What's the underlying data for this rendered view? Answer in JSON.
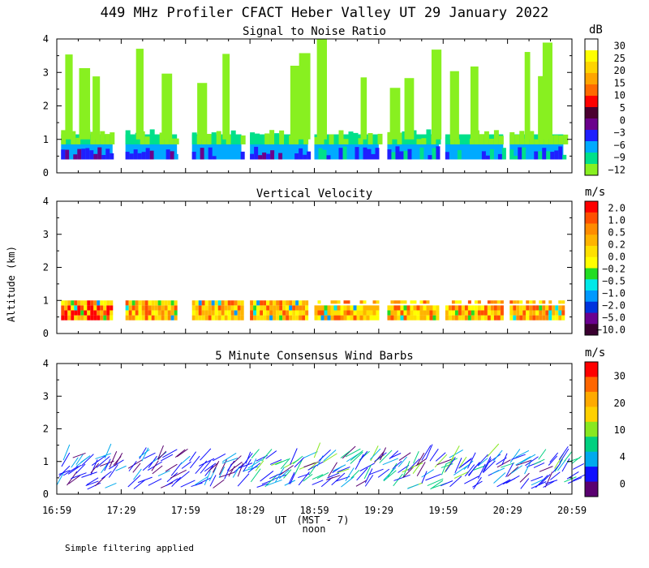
{
  "chart_data": {
    "title": "449 MHz Profiler CFACT Heber Valley UT 29 January 2022",
    "type": "heatmap",
    "shared_ylabel": "Altitude (km)",
    "xlabel": "UT",
    "xlabel_sub": "(MST - 7)",
    "xlabel_sub2": "noon",
    "footnote": "Simple filtering applied",
    "x_tick_labels": [
      "16:59",
      "17:29",
      "17:59",
      "18:29",
      "18:59",
      "19:29",
      "19:59",
      "20:29",
      "20:59"
    ],
    "x_range_minutes": [
      0,
      240
    ],
    "y_tick_labels": [
      "0",
      "1",
      "2",
      "3",
      "4"
    ],
    "ylim_km": [
      0,
      4
    ],
    "panels": [
      {
        "title": "Signal to Noise Ratio",
        "unit": "dB",
        "colorbar_labels": [
          "30",
          "25",
          "20",
          "15",
          "10",
          "5",
          "0",
          "−3",
          "−6",
          "−9",
          "−12"
        ],
        "colorbar_colors": [
          "#ffffff",
          "#ffff00",
          "#ffd400",
          "#ffa500",
          "#ff6a00",
          "#ff0000",
          "#4b0030",
          "#6a008c",
          "#1f1fff",
          "#00aaff",
          "#00e08a",
          "#88f020"
        ]
      },
      {
        "title": "Vertical Velocity",
        "unit": "m/s",
        "colorbar_labels": [
          "2.0",
          "1.0",
          "0.5",
          "0.2",
          "0.0",
          "−0.2",
          "−0.5",
          "−1.0",
          "−2.0",
          "−5.0",
          "−10.0"
        ],
        "colorbar_colors": [
          "#ff0000",
          "#ff5000",
          "#ff8c00",
          "#ffb400",
          "#ffe000",
          "#ffff00",
          "#22dd22",
          "#00e8e8",
          "#0099ff",
          "#0033dd",
          "#6a0090",
          "#3a0030"
        ]
      },
      {
        "title": "5 Minute Consensus Wind Barbs",
        "unit": "m/s",
        "colorbar_labels": [
          "30",
          "20",
          "10",
          "4",
          "0"
        ],
        "colorbar_colors": [
          "#ff0000",
          "#ff6600",
          "#ffaa00",
          "#ffd000",
          "#88e820",
          "#00d080",
          "#00aaee",
          "#1010ff",
          "#5a0070"
        ]
      }
    ]
  }
}
